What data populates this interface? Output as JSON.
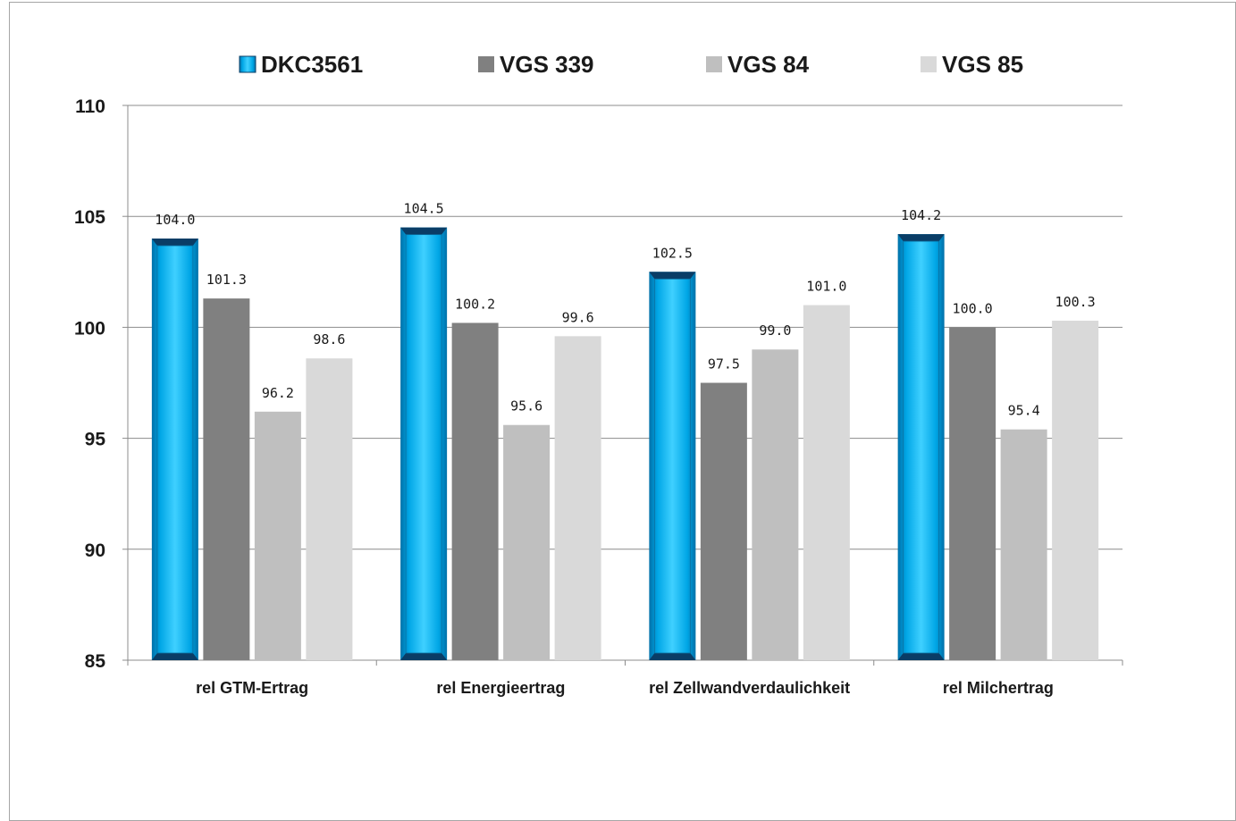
{
  "chart_data": {
    "type": "bar",
    "categories": [
      "rel GTM-Ertrag",
      "rel Energieertrag",
      "rel Zellwandverdaulichkeit",
      "rel Milchertrag"
    ],
    "series": [
      {
        "name": "DKC3561",
        "color": "#00b0f0",
        "values": [
          104.0,
          104.5,
          102.5,
          104.2
        ]
      },
      {
        "name": "VGS 339",
        "color": "#808080",
        "values": [
          101.3,
          100.2,
          97.5,
          100.0
        ]
      },
      {
        "name": "VGS 84",
        "color": "#bfbfbf",
        "values": [
          96.2,
          95.6,
          99.0,
          95.4
        ]
      },
      {
        "name": "VGS 85",
        "color": "#d9d9d9",
        "values": [
          98.6,
          99.6,
          101.0,
          100.3
        ]
      }
    ],
    "data_labels": [
      [
        "104.0",
        "104.5",
        "102.5",
        "104.2"
      ],
      [
        "101.3",
        "100.2",
        "97.5",
        "100.0"
      ],
      [
        "96.2",
        "95.6",
        "99.0",
        "95.4"
      ],
      [
        "98.6",
        "99.6",
        "101.0",
        "100.3"
      ]
    ],
    "y_ticks": [
      "85",
      "90",
      "95",
      "100",
      "105",
      "110"
    ],
    "ylim": [
      85,
      110
    ],
    "grid": true,
    "legend_position": "top"
  }
}
